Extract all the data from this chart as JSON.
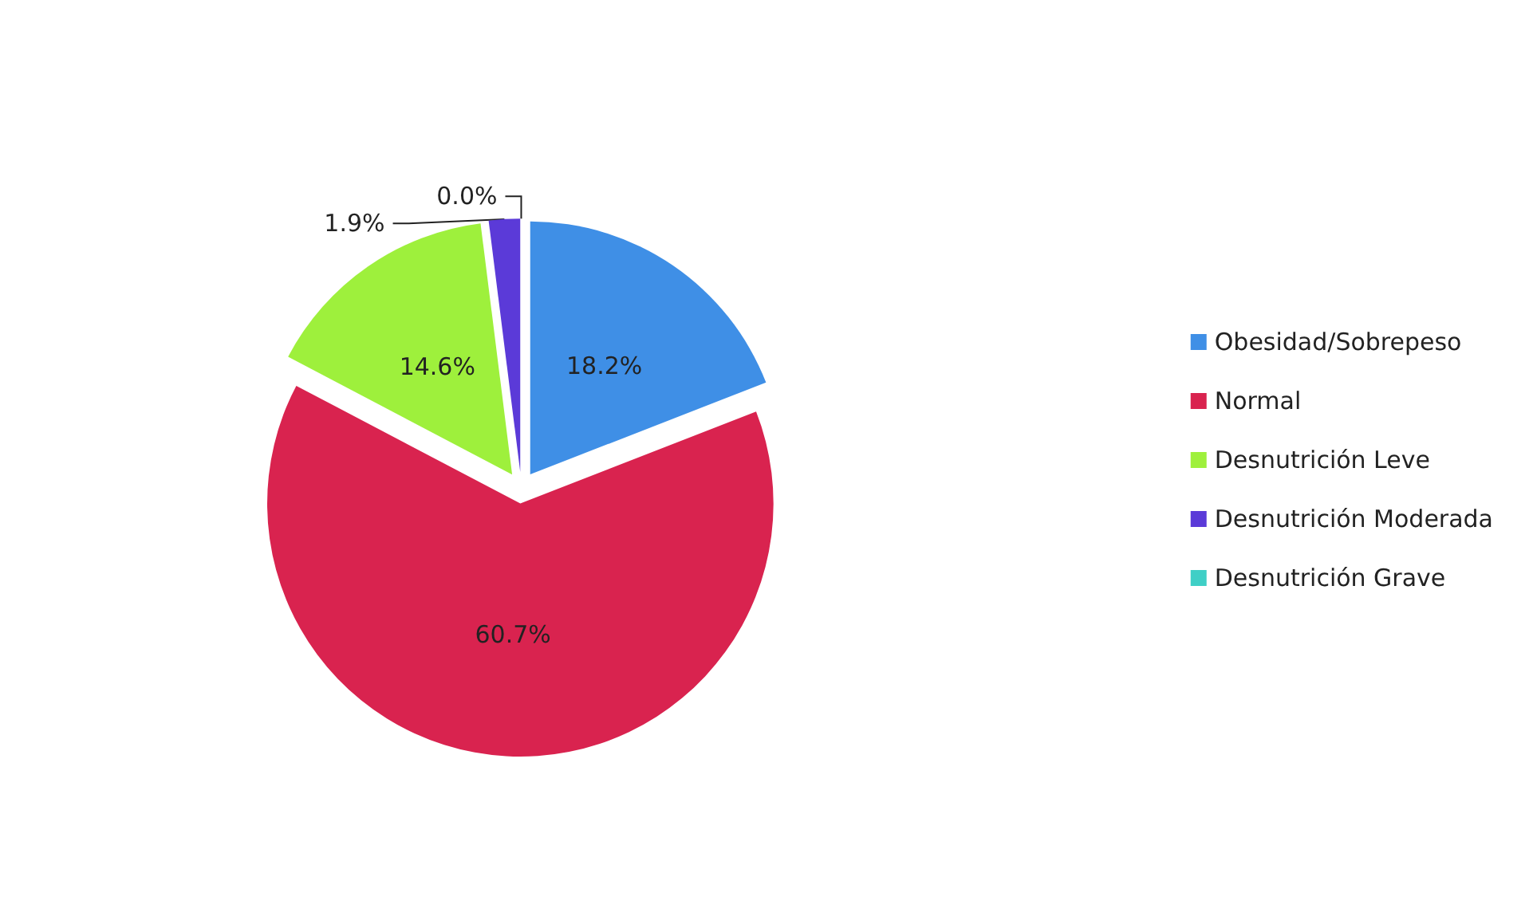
{
  "chart_data": {
    "type": "pie",
    "categories": [
      "Obesidad/Sobrepeso",
      "Normal",
      "Desnutrición Leve",
      "Desnutrición Moderada",
      "Desnutrición Grave"
    ],
    "values": [
      18.2,
      60.7,
      14.6,
      1.9,
      0.0
    ],
    "colors": [
      "#3f8fe6",
      "#d9234f",
      "#9ef03c",
      "#5b3ad8",
      "#3fcfc6"
    ],
    "value_labels": [
      "18.2%",
      "60.7%",
      "14.6%",
      "1.9%",
      "0.0%"
    ],
    "legend": "right"
  }
}
